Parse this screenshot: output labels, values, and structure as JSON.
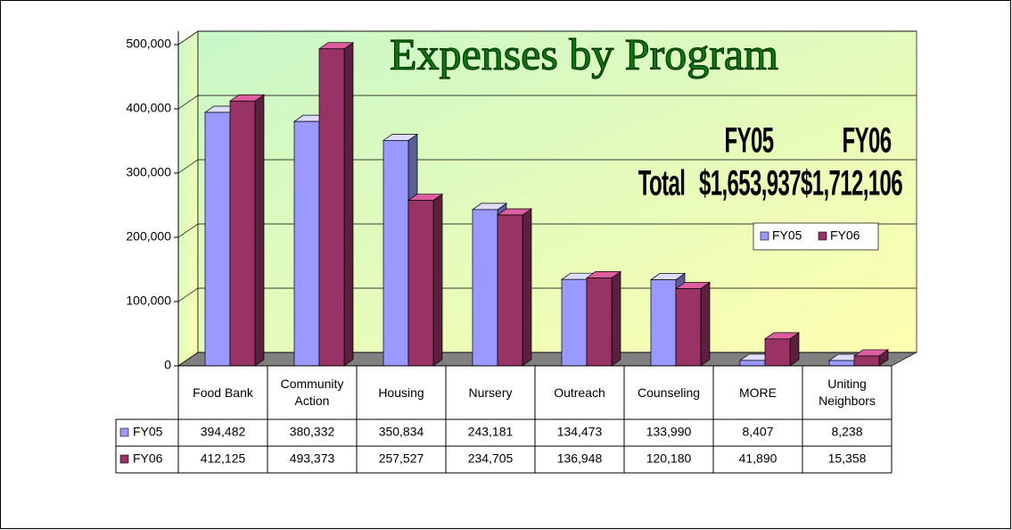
{
  "chart_data": {
    "type": "bar3d",
    "title": "Expenses by Program",
    "categories": [
      "Food Bank",
      "Community Action",
      "Housing",
      "Nursery",
      "Outreach",
      "Counseling",
      "MORE",
      "Uniting Neighbors"
    ],
    "series": [
      {
        "name": "FY05",
        "color": "#9999ff",
        "values": [
          394482,
          380332,
          350834,
          243181,
          134473,
          133990,
          8407,
          8238
        ],
        "value_labels": [
          "394,482",
          "380,332",
          "350,834",
          "243,181",
          "134,473",
          "133,990",
          "8,407",
          "8,238"
        ]
      },
      {
        "name": "FY06",
        "color": "#993366",
        "values": [
          412125,
          493373,
          257527,
          234705,
          136948,
          120180,
          41890,
          15358
        ],
        "value_labels": [
          "412,125",
          "493,373",
          "257,527",
          "234,705",
          "136,948",
          "120,180",
          "41,890",
          "15,358"
        ]
      }
    ],
    "ylim": [
      0,
      500000
    ],
    "yticks": [
      0,
      {
        "value": 100000,
        "label": "100,000"
      },
      {
        "value": 200000,
        "label": "200,000"
      },
      {
        "value": 300000,
        "label": "300,000"
      },
      {
        "value": 400000,
        "label": "400,000"
      },
      {
        "value": 500000,
        "label": "500,000"
      }
    ],
    "grid": true,
    "legend": "right",
    "annotations": [
      "FY05",
      "FY06",
      "Total",
      "$1,653,937",
      "$1,712,106"
    ]
  }
}
